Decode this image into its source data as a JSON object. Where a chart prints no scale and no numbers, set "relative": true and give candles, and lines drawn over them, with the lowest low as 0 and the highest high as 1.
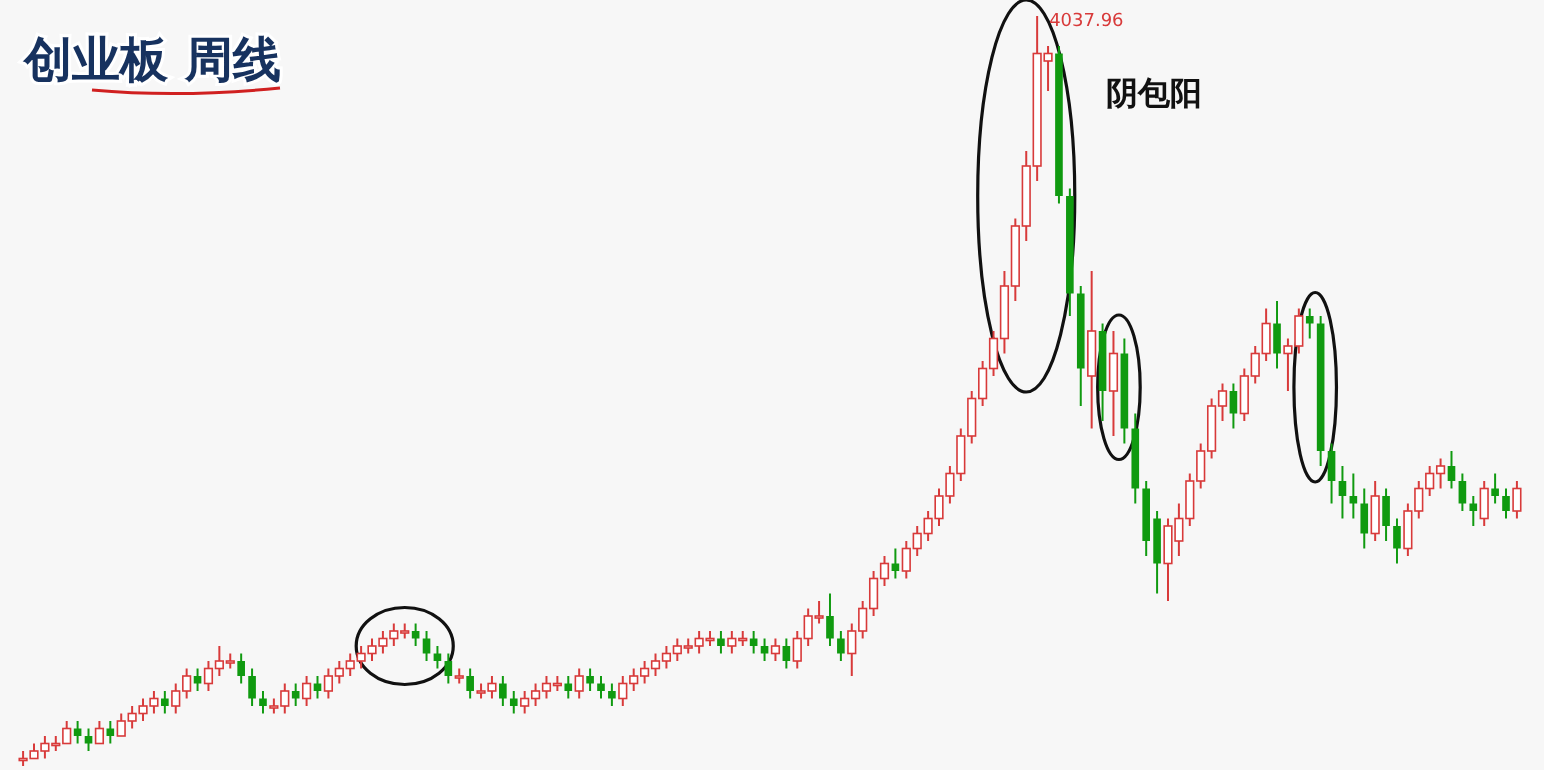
{
  "chart_data": {
    "type": "candlestick",
    "title": "创业板 周线",
    "relative": true,
    "annotations": [
      "阴包阳",
      "4037.96"
    ],
    "categories": [
      null,
      null,
      null,
      null,
      null,
      null,
      null,
      null,
      null,
      null,
      null,
      null,
      null,
      null,
      null,
      null,
      null,
      null,
      null,
      null,
      null,
      null,
      null,
      null,
      null,
      null,
      null,
      null,
      null,
      null,
      null,
      null,
      null,
      null,
      null,
      null,
      null,
      null,
      null,
      null,
      null,
      null,
      null,
      null,
      null,
      null,
      null,
      null,
      null,
      null,
      null,
      null,
      null,
      null,
      null,
      null,
      null,
      null,
      null,
      null,
      null,
      null,
      null,
      null,
      null,
      null,
      null,
      null,
      null,
      null,
      null,
      null,
      null,
      null,
      null,
      null,
      null,
      null,
      null,
      null,
      null,
      null,
      null,
      null,
      null,
      null,
      null,
      null,
      null,
      null,
      null,
      null,
      null,
      null,
      null,
      null,
      null,
      null,
      null,
      null,
      null,
      null,
      null,
      null,
      null,
      null,
      null,
      null,
      null,
      null,
      null,
      null,
      null,
      null,
      null,
      null,
      null,
      null,
      null,
      null,
      null,
      null,
      null,
      null,
      null,
      null,
      null,
      null,
      null,
      null,
      null,
      null,
      null,
      null,
      null,
      null,
      null,
      null
    ],
    "ohlc": [
      [
        0.01,
        0.02,
        0,
        0.01
      ],
      [
        0.01,
        0.03,
        0.01,
        0.02
      ],
      [
        0.02,
        0.04,
        0.01,
        0.03
      ],
      [
        0.03,
        0.04,
        0.02,
        0.03
      ],
      [
        0.03,
        0.06,
        0.03,
        0.05
      ],
      [
        0.05,
        0.06,
        0.03,
        0.04
      ],
      [
        0.04,
        0.05,
        0.02,
        0.03
      ],
      [
        0.03,
        0.06,
        0.03,
        0.05
      ],
      [
        0.05,
        0.06,
        0.03,
        0.04
      ],
      [
        0.04,
        0.07,
        0.04,
        0.06
      ],
      [
        0.06,
        0.08,
        0.05,
        0.07
      ],
      [
        0.07,
        0.09,
        0.06,
        0.08
      ],
      [
        0.08,
        0.1,
        0.07,
        0.09
      ],
      [
        0.09,
        0.1,
        0.07,
        0.08
      ],
      [
        0.08,
        0.11,
        0.07,
        0.1
      ],
      [
        0.1,
        0.13,
        0.09,
        0.12
      ],
      [
        0.12,
        0.13,
        0.1,
        0.11
      ],
      [
        0.11,
        0.14,
        0.1,
        0.13
      ],
      [
        0.13,
        0.16,
        0.12,
        0.14
      ],
      [
        0.14,
        0.15,
        0.13,
        0.14
      ],
      [
        0.14,
        0.15,
        0.11,
        0.12
      ],
      [
        0.12,
        0.13,
        0.08,
        0.09
      ],
      [
        0.09,
        0.1,
        0.07,
        0.08
      ],
      [
        0.08,
        0.09,
        0.07,
        0.08
      ],
      [
        0.08,
        0.11,
        0.07,
        0.1
      ],
      [
        0.1,
        0.11,
        0.08,
        0.09
      ],
      [
        0.09,
        0.12,
        0.08,
        0.11
      ],
      [
        0.11,
        0.12,
        0.09,
        0.1
      ],
      [
        0.1,
        0.13,
        0.09,
        0.12
      ],
      [
        0.12,
        0.14,
        0.11,
        0.13
      ],
      [
        0.13,
        0.15,
        0.12,
        0.14
      ],
      [
        0.14,
        0.16,
        0.13,
        0.15
      ],
      [
        0.15,
        0.17,
        0.14,
        0.16
      ],
      [
        0.16,
        0.18,
        0.15,
        0.17
      ],
      [
        0.17,
        0.19,
        0.16,
        0.18
      ],
      [
        0.18,
        0.19,
        0.17,
        0.18
      ],
      [
        0.18,
        0.19,
        0.16,
        0.17
      ],
      [
        0.17,
        0.18,
        0.14,
        0.15
      ],
      [
        0.15,
        0.16,
        0.13,
        0.14
      ],
      [
        0.14,
        0.15,
        0.11,
        0.12
      ],
      [
        0.12,
        0.13,
        0.11,
        0.12
      ],
      [
        0.12,
        0.13,
        0.09,
        0.1
      ],
      [
        0.1,
        0.11,
        0.09,
        0.1
      ],
      [
        0.1,
        0.12,
        0.09,
        0.11
      ],
      [
        0.11,
        0.12,
        0.08,
        0.09
      ],
      [
        0.09,
        0.1,
        0.07,
        0.08
      ],
      [
        0.08,
        0.1,
        0.07,
        0.09
      ],
      [
        0.09,
        0.11,
        0.08,
        0.1
      ],
      [
        0.1,
        0.12,
        0.09,
        0.11
      ],
      [
        0.11,
        0.12,
        0.1,
        0.11
      ],
      [
        0.11,
        0.12,
        0.09,
        0.1
      ],
      [
        0.1,
        0.13,
        0.09,
        0.12
      ],
      [
        0.12,
        0.13,
        0.1,
        0.11
      ],
      [
        0.11,
        0.12,
        0.09,
        0.1
      ],
      [
        0.1,
        0.11,
        0.08,
        0.09
      ],
      [
        0.09,
        0.12,
        0.08,
        0.11
      ],
      [
        0.11,
        0.13,
        0.1,
        0.12
      ],
      [
        0.12,
        0.14,
        0.11,
        0.13
      ],
      [
        0.13,
        0.15,
        0.12,
        0.14
      ],
      [
        0.14,
        0.16,
        0.13,
        0.15
      ],
      [
        0.15,
        0.17,
        0.14,
        0.16
      ],
      [
        0.16,
        0.17,
        0.15,
        0.16
      ],
      [
        0.16,
        0.18,
        0.15,
        0.17
      ],
      [
        0.17,
        0.18,
        0.16,
        0.17
      ],
      [
        0.17,
        0.18,
        0.15,
        0.16
      ],
      [
        0.16,
        0.18,
        0.15,
        0.17
      ],
      [
        0.17,
        0.18,
        0.16,
        0.17
      ],
      [
        0.17,
        0.18,
        0.15,
        0.16
      ],
      [
        0.16,
        0.17,
        0.14,
        0.15
      ],
      [
        0.15,
        0.17,
        0.14,
        0.16
      ],
      [
        0.16,
        0.17,
        0.13,
        0.14
      ],
      [
        0.14,
        0.18,
        0.13,
        0.17
      ],
      [
        0.17,
        0.21,
        0.16,
        0.2
      ],
      [
        0.2,
        0.22,
        0.19,
        0.2
      ],
      [
        0.2,
        0.23,
        0.16,
        0.17
      ],
      [
        0.17,
        0.18,
        0.14,
        0.15
      ],
      [
        0.15,
        0.19,
        0.12,
        0.18
      ],
      [
        0.18,
        0.22,
        0.17,
        0.21
      ],
      [
        0.21,
        0.26,
        0.2,
        0.25
      ],
      [
        0.25,
        0.28,
        0.24,
        0.27
      ],
      [
        0.27,
        0.29,
        0.25,
        0.26
      ],
      [
        0.26,
        0.3,
        0.25,
        0.29
      ],
      [
        0.29,
        0.32,
        0.28,
        0.31
      ],
      [
        0.31,
        0.34,
        0.3,
        0.33
      ],
      [
        0.33,
        0.37,
        0.32,
        0.36
      ],
      [
        0.36,
        0.4,
        0.35,
        0.39
      ],
      [
        0.39,
        0.45,
        0.38,
        0.44
      ],
      [
        0.44,
        0.5,
        0.43,
        0.49
      ],
      [
        0.49,
        0.54,
        0.48,
        0.53
      ],
      [
        0.53,
        0.58,
        0.52,
        0.57
      ],
      [
        0.57,
        0.66,
        0.55,
        0.64
      ],
      [
        0.64,
        0.73,
        0.62,
        0.72
      ],
      [
        0.72,
        0.82,
        0.7,
        0.8
      ],
      [
        0.8,
        1,
        0.78,
        0.95
      ],
      [
        0.94,
        0.96,
        0.9,
        0.95
      ],
      [
        0.95,
        0.96,
        0.75,
        0.76
      ],
      [
        0.76,
        0.77,
        0.6,
        0.63
      ],
      [
        0.63,
        0.64,
        0.48,
        0.53
      ],
      [
        0.52,
        0.66,
        0.45,
        0.58
      ],
      [
        0.58,
        0.59,
        0.46,
        0.5
      ],
      [
        0.5,
        0.58,
        0.44,
        0.55
      ],
      [
        0.55,
        0.57,
        0.43,
        0.45
      ],
      [
        0.45,
        0.47,
        0.35,
        0.37
      ],
      [
        0.37,
        0.38,
        0.28,
        0.3
      ],
      [
        0.33,
        0.34,
        0.23,
        0.27
      ],
      [
        0.27,
        0.33,
        0.22,
        0.32
      ],
      [
        0.3,
        0.35,
        0.28,
        0.33
      ],
      [
        0.33,
        0.39,
        0.32,
        0.38
      ],
      [
        0.38,
        0.43,
        0.37,
        0.42
      ],
      [
        0.42,
        0.49,
        0.41,
        0.48
      ],
      [
        0.48,
        0.51,
        0.46,
        0.5
      ],
      [
        0.5,
        0.51,
        0.45,
        0.47
      ],
      [
        0.47,
        0.53,
        0.46,
        0.52
      ],
      [
        0.52,
        0.56,
        0.51,
        0.55
      ],
      [
        0.55,
        0.61,
        0.54,
        0.59
      ],
      [
        0.59,
        0.62,
        0.53,
        0.55
      ],
      [
        0.55,
        0.57,
        0.5,
        0.56
      ],
      [
        0.56,
        0.61,
        0.55,
        0.6
      ],
      [
        0.6,
        0.61,
        0.57,
        0.59
      ],
      [
        0.59,
        0.6,
        0.4,
        0.42
      ],
      [
        0.42,
        0.43,
        0.35,
        0.38
      ],
      [
        0.38,
        0.4,
        0.33,
        0.36
      ],
      [
        0.36,
        0.39,
        0.33,
        0.35
      ],
      [
        0.35,
        0.37,
        0.29,
        0.31
      ],
      [
        0.31,
        0.38,
        0.3,
        0.36
      ],
      [
        0.36,
        0.37,
        0.3,
        0.32
      ],
      [
        0.32,
        0.33,
        0.27,
        0.29
      ],
      [
        0.29,
        0.35,
        0.28,
        0.34
      ],
      [
        0.34,
        0.38,
        0.33,
        0.37
      ],
      [
        0.37,
        0.4,
        0.36,
        0.39
      ],
      [
        0.39,
        0.41,
        0.37,
        0.4
      ],
      [
        0.4,
        0.42,
        0.37,
        0.38
      ],
      [
        0.38,
        0.39,
        0.34,
        0.35
      ],
      [
        0.35,
        0.36,
        0.32,
        0.34
      ],
      [
        0.33,
        0.38,
        0.32,
        0.37
      ],
      [
        0.37,
        0.39,
        0.35,
        0.36
      ],
      [
        0.36,
        0.37,
        0.33,
        0.34
      ],
      [
        0.34,
        0.38,
        0.33,
        0.37
      ]
    ]
  }
}
